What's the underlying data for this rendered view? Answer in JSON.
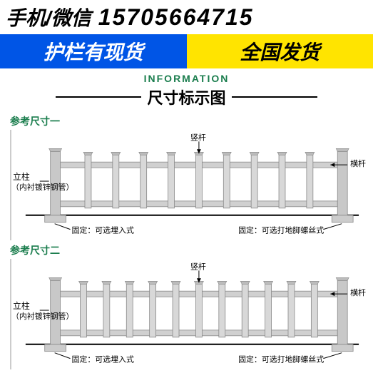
{
  "header": {
    "contact_label": "手机/微信",
    "phone": "15705664715"
  },
  "stripe": {
    "left": "护栏有现货",
    "right": "全国发货",
    "left_bg": "#0055e6",
    "left_color": "#ffffff",
    "right_bg": "#ffe400",
    "right_color": "#000000"
  },
  "info": {
    "english": "INFORMATION",
    "title": "尺寸标示图",
    "english_color": "#1a7d4d"
  },
  "diagrams": [
    {
      "ref_label": "参考尺寸一",
      "labels": {
        "vertical_bar": "竖杆",
        "horizontal_bar": "横杆",
        "post": "立柱",
        "post_sub": "（内衬镀锌钢管）",
        "fix_left": "固定：可选埋入式",
        "fix_right": "固定：可选打地脚螺丝式"
      },
      "fence": {
        "picket_count": 9,
        "post_color": "#c8c8c8",
        "rail_color": "#d0d0d0",
        "picket_color": "#d8d8d8",
        "outline": "#888888",
        "base_line": "#000000"
      }
    },
    {
      "ref_label": "参考尺寸二",
      "labels": {
        "vertical_bar": "竖杆",
        "horizontal_bar": "横杆",
        "post": "立柱",
        "post_sub": "（内衬镀锌钢管）",
        "fix_left": "固定：可选埋入式",
        "fix_right": "固定：可选打地脚螺丝式"
      },
      "fence": {
        "picket_count": 11,
        "post_color": "#c8c8c8",
        "rail_color": "#d0d0d0",
        "picket_color": "#d8d8d8",
        "outline": "#888888",
        "base_line": "#000000"
      }
    }
  ]
}
